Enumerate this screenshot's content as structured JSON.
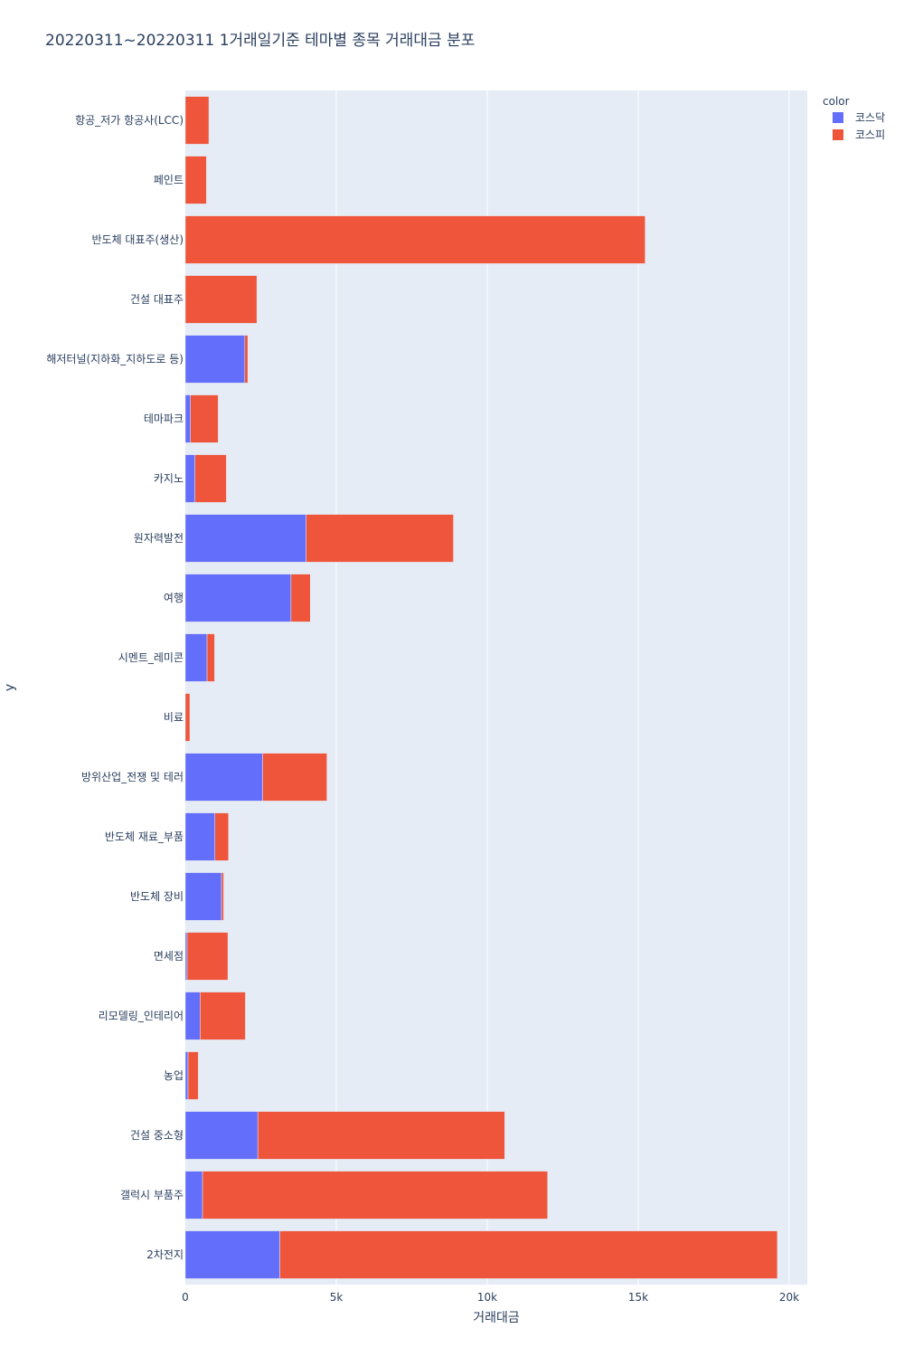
{
  "chart_data": {
    "type": "bar",
    "orientation": "horizontal",
    "barmode": "stack",
    "title": "20220311~20220311 1거래일기준 테마별 종목 거래대금 분포",
    "xlabel": "거래대금",
    "ylabel": "y",
    "xlim": [
      0,
      20600
    ],
    "x_ticks": [
      {
        "value": 0,
        "label": "0"
      },
      {
        "value": 5000,
        "label": "5k"
      },
      {
        "value": 10000,
        "label": "10k"
      },
      {
        "value": 15000,
        "label": "15k"
      },
      {
        "value": 20000,
        "label": "20k"
      }
    ],
    "legend_title": "color",
    "legend_position": "top-right",
    "grid": true,
    "plot_bg": "#e5ecf6",
    "categories": [
      "항공_저가 항공사(LCC)",
      "페인트",
      "반도체 대표주(생산)",
      "건설 대표주",
      "해저터널(지하화_지하도로 등)",
      "테마파크",
      "카지노",
      "원자력발전",
      "여행",
      "시멘트_레미콘",
      "비료",
      "방위산업_전쟁 및 테러",
      "반도체 재료_부품",
      "반도체 장비",
      "면세점",
      "리모델링_인테리어",
      "농업",
      "건설 중소형",
      "갤럭시 부품주",
      "2차전지"
    ],
    "series": [
      {
        "name": "코스닥",
        "color": "#636efa",
        "values": [
          0,
          0,
          0,
          0,
          1970,
          170,
          320,
          4000,
          3500,
          720,
          0,
          2560,
          980,
          1200,
          60,
          490,
          90,
          2400,
          570,
          3130
        ]
      },
      {
        "name": "코스피",
        "color": "#ef553b",
        "values": [
          780,
          700,
          15230,
          2370,
          100,
          920,
          1040,
          4880,
          640,
          250,
          150,
          2130,
          450,
          70,
          1350,
          1500,
          340,
          8180,
          11430,
          16480
        ]
      }
    ]
  }
}
